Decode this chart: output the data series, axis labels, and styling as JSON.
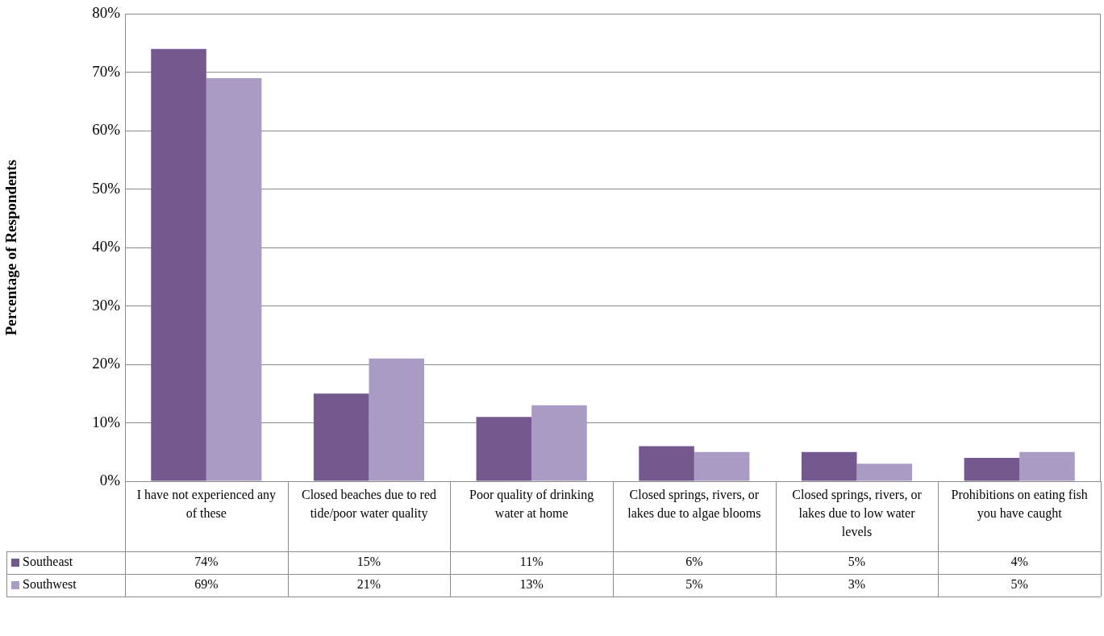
{
  "chart_data": {
    "type": "bar",
    "ylabel": "Percentage of Respondents",
    "categories": [
      "I have not experienced any of these",
      "Closed beaches due to red tide/poor water quality",
      "Poor quality of drinking water at home",
      "Closed springs, rivers, or lakes due to algae blooms",
      "Closed springs, rivers, or lakes due to low water levels",
      "Prohibitions on eating fish you have caught"
    ],
    "series": [
      {
        "name": "Southeast",
        "color": "#74598f",
        "values": [
          74,
          15,
          11,
          6,
          5,
          4
        ],
        "value_labels": [
          "74%",
          "15%",
          "11%",
          "6%",
          "5%",
          "4%"
        ]
      },
      {
        "name": "Southwest",
        "color": "#a99bc4",
        "values": [
          69,
          21,
          13,
          5,
          3,
          5
        ],
        "value_labels": [
          "69%",
          "21%",
          "13%",
          "5%",
          "3%",
          "5%"
        ]
      }
    ],
    "ylim": [
      0,
      80
    ],
    "yticks": [
      {
        "value": 0,
        "label": "0%"
      },
      {
        "value": 10,
        "label": "10%"
      },
      {
        "value": 20,
        "label": "20%"
      },
      {
        "value": 30,
        "label": "30%"
      },
      {
        "value": 40,
        "label": "40%"
      },
      {
        "value": 50,
        "label": "50%"
      },
      {
        "value": 60,
        "label": "60%"
      },
      {
        "value": 70,
        "label": "70%"
      },
      {
        "value": 80,
        "label": "80%"
      }
    ],
    "grid": "y",
    "legend": "bottom"
  }
}
